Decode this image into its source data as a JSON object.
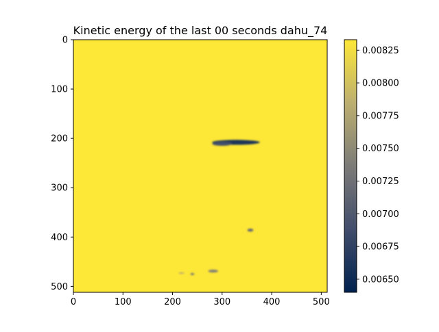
{
  "chart_data": {
    "type": "heatmap",
    "title": "Kinetic energy of the last 00 seconds dahu_74",
    "xlim": [
      0,
      512
    ],
    "ylim": [
      512,
      0
    ],
    "x_ticks": [
      0,
      100,
      200,
      300,
      400,
      500
    ],
    "y_ticks": [
      0,
      100,
      200,
      300,
      400,
      500
    ],
    "colormap": "cividis",
    "colormap_stops": [
      "#00224e",
      "#414d6b",
      "#7c7b78",
      "#bcaf6f",
      "#fde737"
    ],
    "background_value": 0.00833,
    "color_range": [
      0.0064,
      0.00833
    ],
    "colorbar_ticks": [
      "0.00650",
      "0.00675",
      "0.00700",
      "0.00725",
      "0.00750",
      "0.00775",
      "0.00800",
      "0.00825"
    ],
    "features": [
      {
        "x": 328,
        "y": 208,
        "rx": 48,
        "ry": 5,
        "value": 0.0066
      },
      {
        "x": 300,
        "y": 211,
        "rx": 20,
        "ry": 4,
        "value": 0.0069
      },
      {
        "x": 357,
        "y": 386,
        "rx": 6,
        "ry": 3,
        "value": 0.0072
      },
      {
        "x": 282,
        "y": 469,
        "rx": 10,
        "ry": 3,
        "value": 0.0074
      },
      {
        "x": 240,
        "y": 475,
        "rx": 4,
        "ry": 2,
        "value": 0.0073
      },
      {
        "x": 218,
        "y": 473,
        "rx": 6,
        "ry": 1.5,
        "value": 0.0078
      }
    ]
  }
}
